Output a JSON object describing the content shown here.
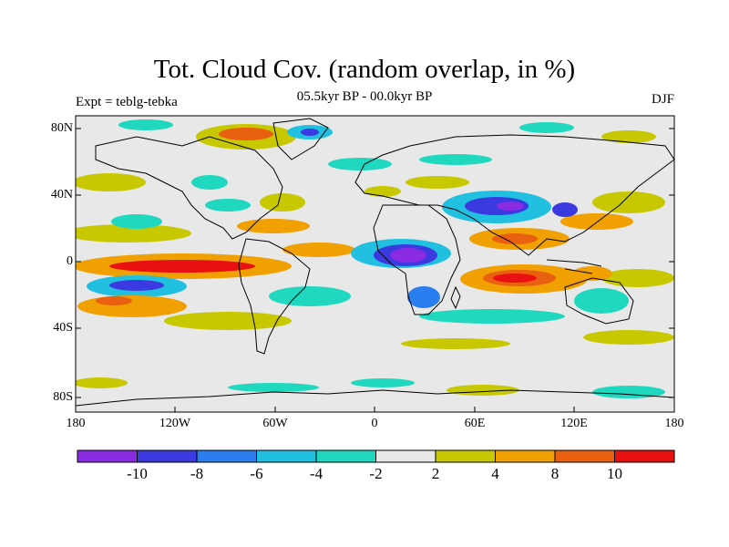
{
  "title": "Tot. Cloud Cov. (random overlap, in %)",
  "subtitle": "05.5kyr BP - 00.0kyr BP",
  "left_label": "Expt = teblg-tebka",
  "right_label": "DJF",
  "y_ticks": [
    "80N",
    "40N",
    "0",
    "40S",
    "80S"
  ],
  "x_ticks": [
    "180",
    "120W",
    "60W",
    "0",
    "60E",
    "120E",
    "180"
  ],
  "colorbar": {
    "colors": [
      "#8a2be2",
      "#3a3ae0",
      "#2a7ef0",
      "#22c0e0",
      "#20d8c0",
      "#e8e8e8",
      "#c8c800",
      "#f0a000",
      "#e86010",
      "#e81010"
    ],
    "labels": [
      "-10",
      "-8",
      "-6",
      "-4",
      "-2",
      "2",
      "4",
      "8",
      "10"
    ]
  }
}
